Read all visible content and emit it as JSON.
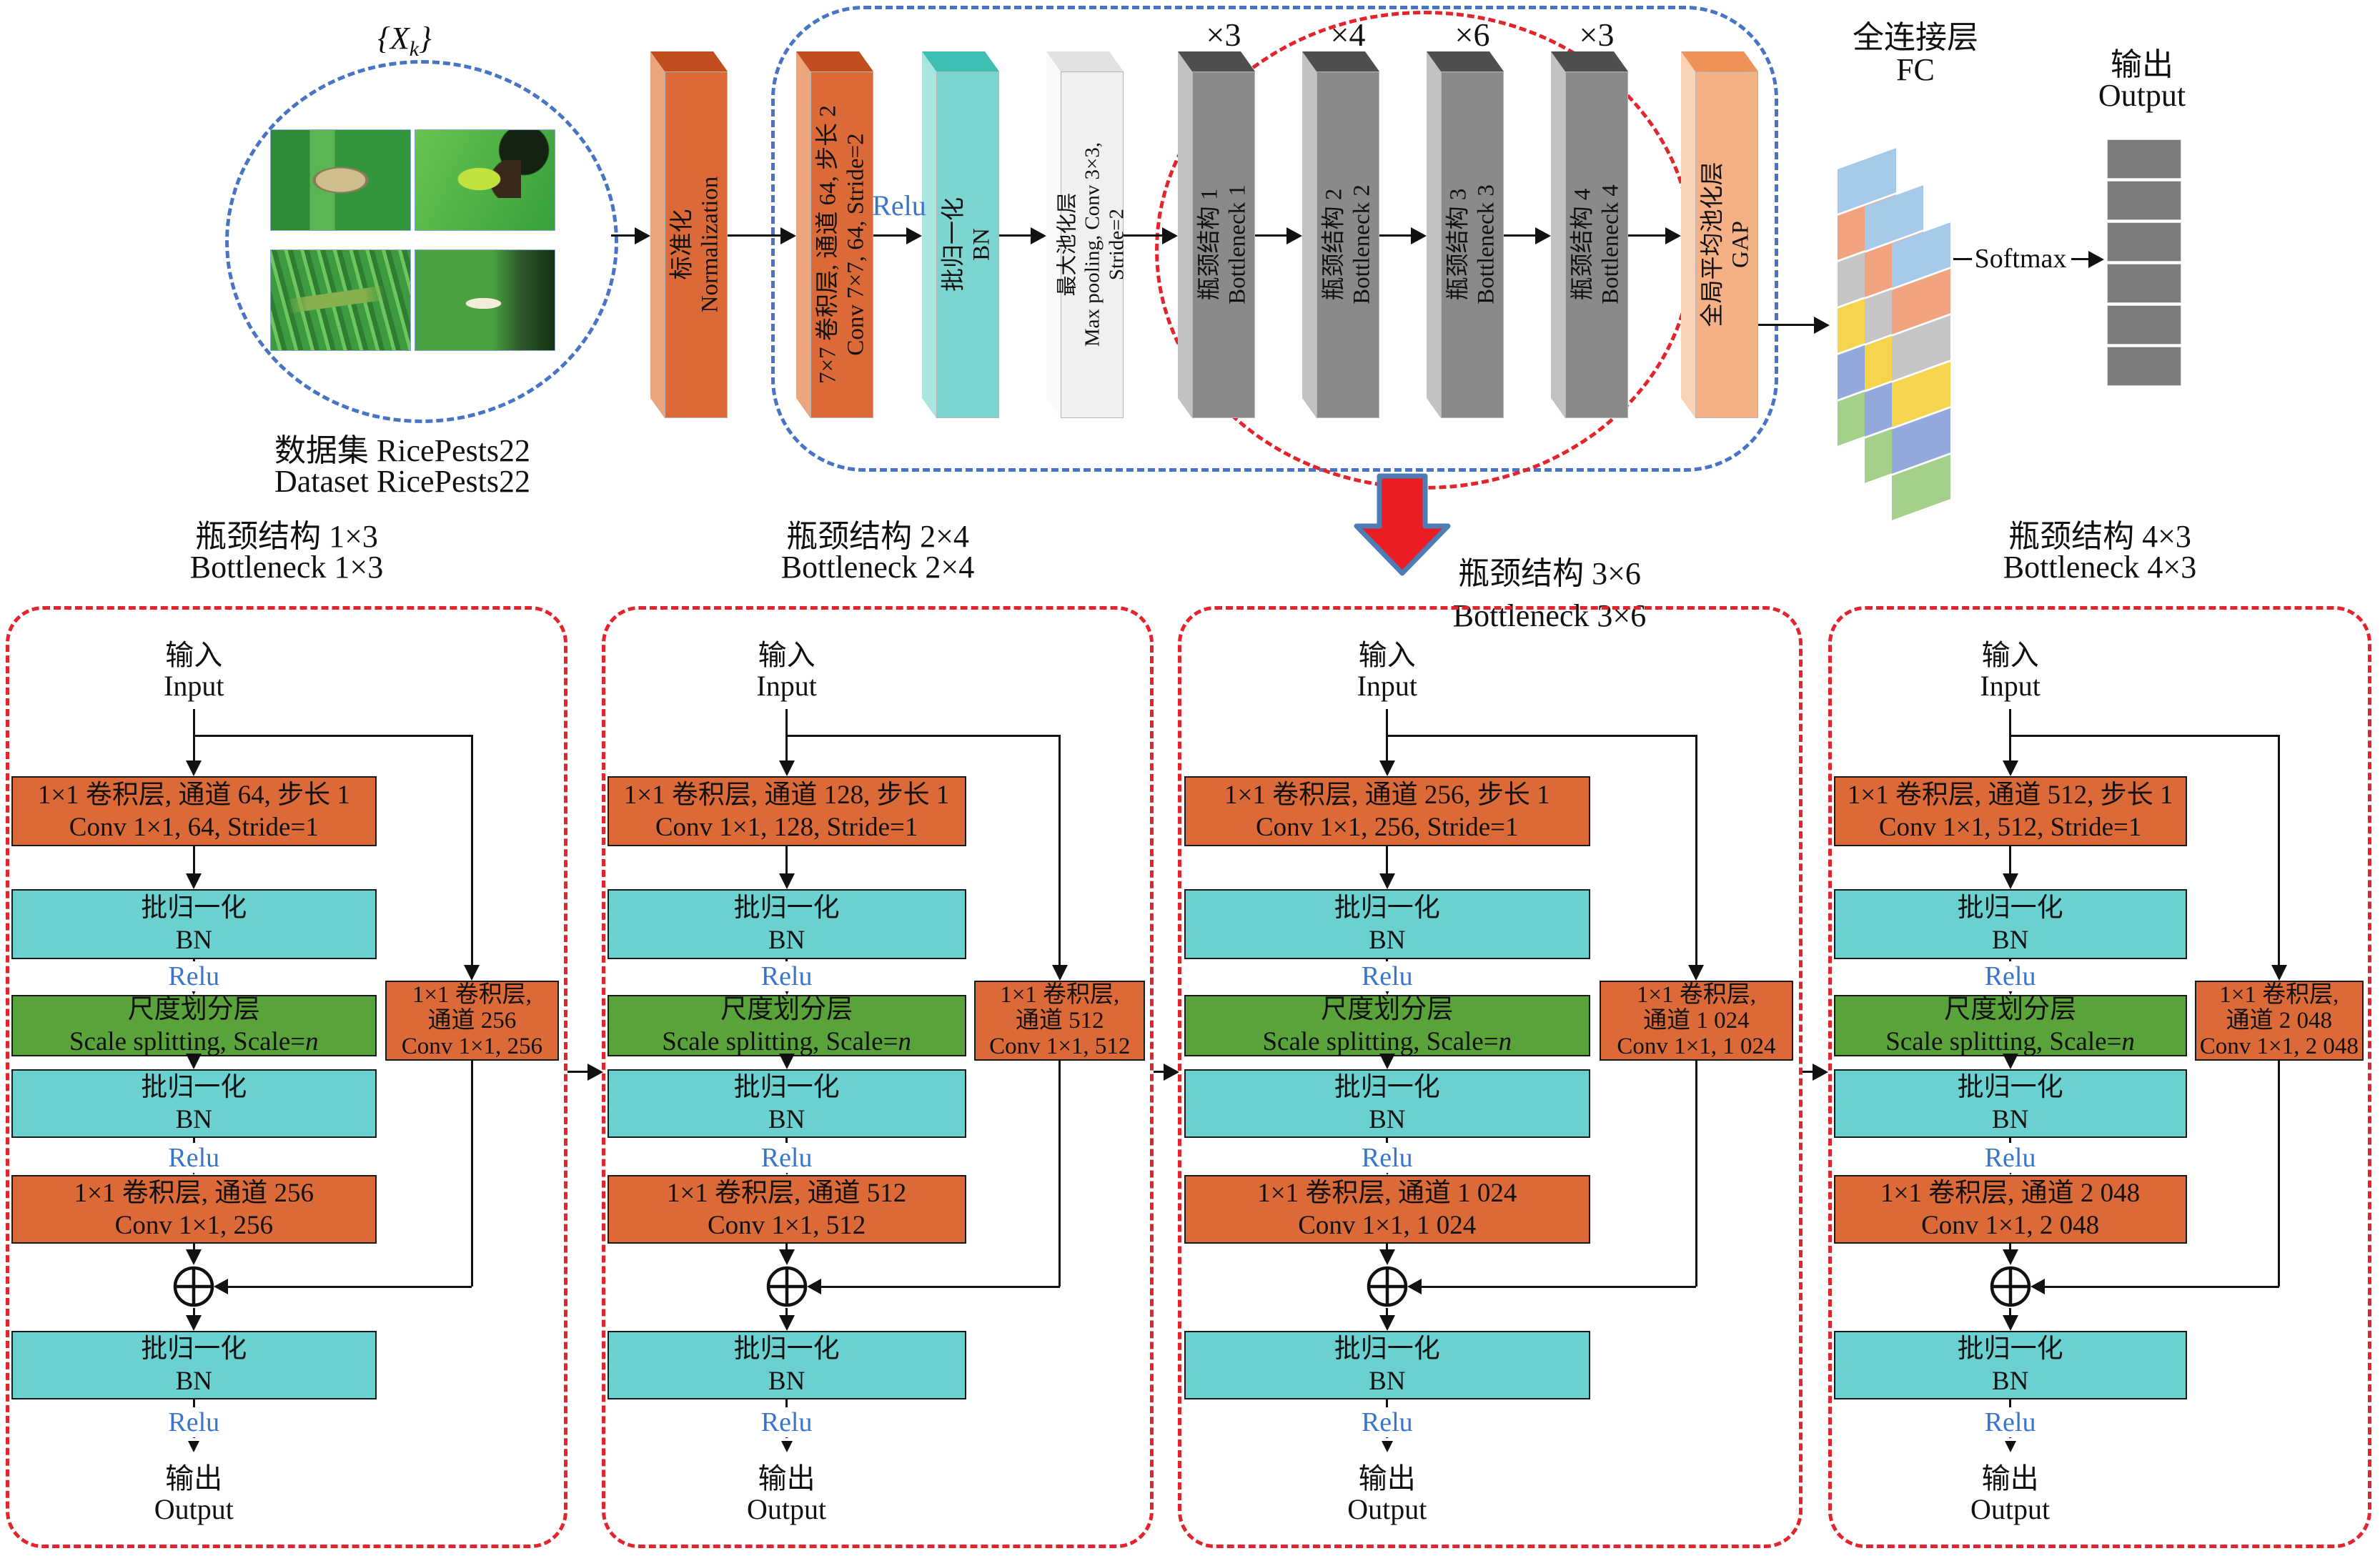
{
  "figure": {
    "xk": {
      "open": "{",
      "sym": "X",
      "sub": "k",
      "close": "}"
    },
    "dataset": {
      "caption_zh": "数据集 RicePests22",
      "caption_en": "Dataset RicePests22",
      "photos": [
        "rice-moth-on-leaf",
        "green-rice-leafhopper",
        "grasshopper-in-rice",
        "white-rice-planthopper"
      ]
    },
    "relu": "Relu",
    "pipeline": [
      {
        "zh": "标准化",
        "en": "Normalization"
      },
      {
        "zh": "7×7 卷积层, 通道 64, 步长 2",
        "en": "Conv 7×7, 64, Stride=2"
      },
      {
        "zh": "批归一化",
        "en": "BN"
      },
      {
        "zh": "最大池化层",
        "en": "Max pooling, Conv 3×3,",
        "en2": "Stride=2"
      },
      {
        "zh": "瓶颈结构 1",
        "en": "Bottleneck 1",
        "mult": "×3"
      },
      {
        "zh": "瓶颈结构 2",
        "en": "Bottleneck 2",
        "mult": "×4"
      },
      {
        "zh": "瓶颈结构 3",
        "en": "Bottleneck 3",
        "mult": "×6"
      },
      {
        "zh": "瓶颈结构 4",
        "en": "Bottleneck 4",
        "mult": "×3"
      },
      {
        "zh": "全局平均池化层",
        "en": "GAP"
      }
    ],
    "fc": {
      "zh": "全连接层",
      "en": "FC"
    },
    "fc_band_colors": [
      "#A6CBEA",
      "#F0A37E",
      "#C6C6C6",
      "#F6D44E",
      "#93A9DC",
      "#A4D08C"
    ],
    "softmax": "Softmax",
    "output": {
      "zh": "输出",
      "en": "Output",
      "cells": 6,
      "cell_color": "#7C7C7C"
    }
  },
  "panels": [
    {
      "title_zh": "瓶颈结构 1×3",
      "title_en": "Bottleneck 1×3",
      "input_zh": "输入",
      "input_en": "Input",
      "conv1_zh": "1×1 卷积层, 通道 64, 步长 1",
      "conv1_en": "Conv 1×1, 64, Stride=1",
      "bn_zh": "批归一化",
      "bn_en": "BN",
      "relu": "Relu",
      "scale_zh": "尺度划分层",
      "scale_en": "Scale splitting, Scale=",
      "scale_var": "n",
      "side1": "1×1 卷积层,",
      "side2": "通道  256",
      "side3": "Conv 1×1, 256",
      "conv2_zh": "1×1 卷积层, 通道 256",
      "conv2_en": "Conv 1×1, 256",
      "out_zh": "输出",
      "out_en": "Output"
    },
    {
      "title_zh": "瓶颈结构 2×4",
      "title_en": "Bottleneck 2×4",
      "input_zh": "输入",
      "input_en": "Input",
      "conv1_zh": "1×1 卷积层, 通道 128, 步长 1",
      "conv1_en": "Conv 1×1, 128, Stride=1",
      "bn_zh": "批归一化",
      "bn_en": "BN",
      "relu": "Relu",
      "scale_zh": "尺度划分层",
      "scale_en": "Scale splitting, Scale=",
      "scale_var": "n",
      "side1": "1×1 卷积层,",
      "side2": "通道 512",
      "side3": "Conv 1×1, 512",
      "conv2_zh": "1×1 卷积层, 通道 512",
      "conv2_en": "Conv 1×1, 512",
      "out_zh": "输出",
      "out_en": "Output"
    },
    {
      "title_zh": "瓶颈结构 3×6",
      "title_en": "Bottleneck 3×6",
      "input_zh": "输入",
      "input_en": "Input",
      "conv1_zh": "1×1 卷积层, 通道 256, 步长 1",
      "conv1_en": "Conv 1×1, 256, Stride=1",
      "bn_zh": "批归一化",
      "bn_en": "BN",
      "relu": "Relu",
      "scale_zh": "尺度划分层",
      "scale_en": "Scale splitting, Scale=",
      "scale_var": "n",
      "side1": "1×1 卷积层,",
      "side2": "通道 1 024",
      "side3": "Conv 1×1, 1 024",
      "conv2_zh": "1×1 卷积层, 通道 1 024",
      "conv2_en": "Conv 1×1, 1 024",
      "out_zh": "输出",
      "out_en": "Output"
    },
    {
      "title_zh": "瓶颈结构 4×3",
      "title_en": "Bottleneck 4×3",
      "input_zh": "输入",
      "input_en": "Input",
      "conv1_zh": "1×1 卷积层, 通道 512, 步长 1",
      "conv1_en": "Conv 1×1, 512, Stride=1",
      "bn_zh": "批归一化",
      "bn_en": "BN",
      "relu": "Relu",
      "scale_zh": "尺度划分层",
      "scale_en": "Scale splitting, Scale=",
      "scale_var": "n",
      "side1": "1×1 卷积层,",
      "side2": "通道 2 048",
      "side3": "Conv 1×1, 2 048",
      "conv2_zh": "1×1 卷积层, 通道 2 048",
      "conv2_en": "Conv 1×1, 2 048",
      "out_zh": "输出",
      "out_en": "Output"
    }
  ]
}
